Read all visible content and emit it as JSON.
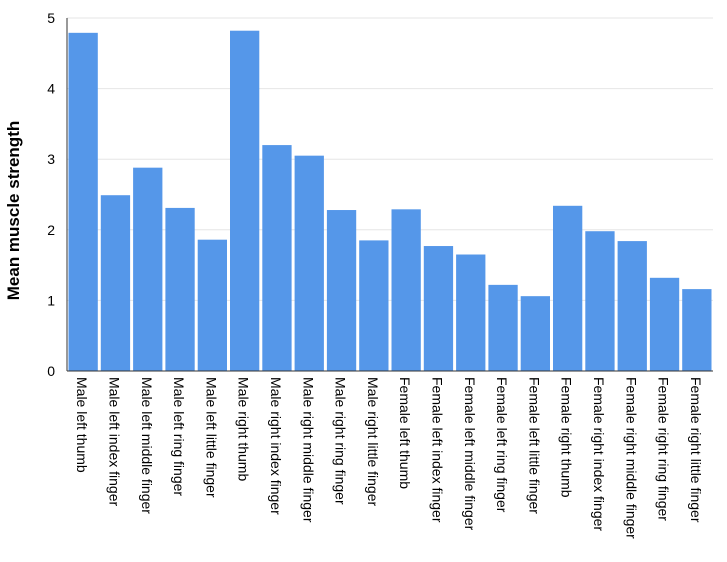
{
  "chart_data": {
    "type": "bar",
    "title": "",
    "xlabel": "",
    "ylabel": "Mean muscle strength",
    "ylim": [
      0,
      5
    ],
    "yticks": [
      0,
      1,
      2,
      3,
      4,
      5
    ],
    "grid": true,
    "bar_color": "#5597e9",
    "gridline_color": "#e6e6e6",
    "categories": [
      "Male left thumb",
      "Male left index finger",
      "Male left middle finger",
      "Male left ring finger",
      "Male left little finger",
      "Male right thumb",
      "Male right index finger",
      "Male right middle finger",
      "Male right ring finger",
      "Male right little finger",
      "Female left thumb",
      "Female left index finger",
      "Female left middle finger",
      "Female left ring finger",
      "Female left little finger",
      "Female right thumb",
      "Female right index finger",
      "Female right middle finger",
      "Female right ring finger",
      "Female right little finger"
    ],
    "values": [
      4.79,
      2.49,
      2.88,
      2.31,
      1.86,
      4.82,
      3.2,
      3.05,
      2.28,
      1.85,
      2.29,
      1.77,
      1.65,
      1.22,
      1.06,
      2.34,
      1.98,
      1.84,
      1.32,
      1.16
    ]
  }
}
